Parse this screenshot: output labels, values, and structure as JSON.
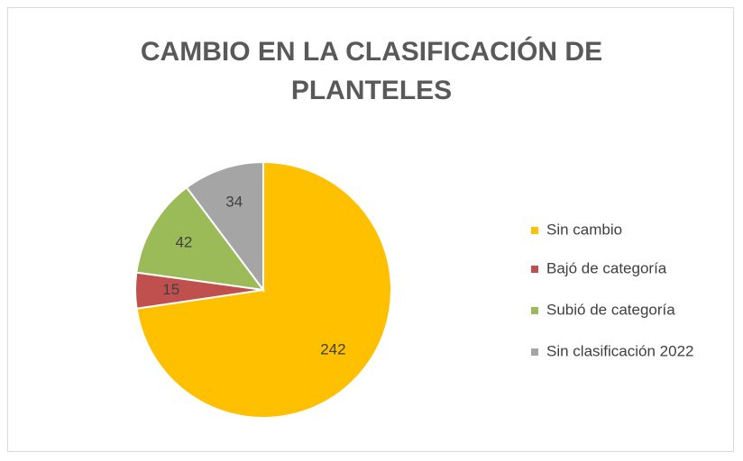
{
  "chart_data": {
    "type": "pie",
    "title": "CAMBIO EN LA CLASIFICACIÓN DE PLANTELES",
    "categories": [
      "Sin cambio",
      "Bajó de categoría",
      "Subió de categoría",
      "Sin clasificación 2022"
    ],
    "values": [
      242,
      15,
      42,
      34
    ],
    "colors": [
      "#ffc000",
      "#c0504d",
      "#9bbb59",
      "#a5a5a5"
    ],
    "legend": "right"
  }
}
